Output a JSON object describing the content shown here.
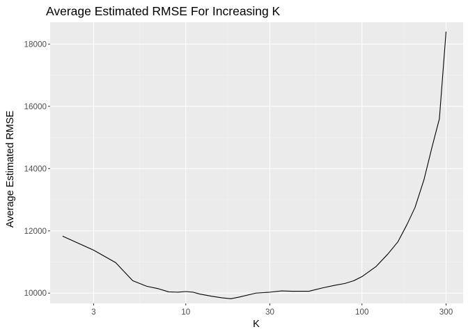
{
  "chart_data": {
    "type": "line",
    "title": "Average Estimated RMSE For Increasing K",
    "xlabel": "K",
    "ylabel": "Average Estimated RMSE",
    "x_scale": "log10",
    "xlim": [
      1.7,
      375
    ],
    "ylim": [
      9670,
      18700
    ],
    "x_ticks": [
      3,
      10,
      30,
      100,
      300
    ],
    "x_tick_labels": [
      "3",
      "10",
      "30",
      "100",
      "300"
    ],
    "y_ticks": [
      10000,
      12000,
      14000,
      16000,
      18000
    ],
    "y_tick_labels": [
      "10000",
      "12000",
      "14000",
      "16000",
      "18000"
    ],
    "grid": true,
    "legend": "none",
    "colors": {
      "panel_background": "#EBEBEB",
      "grid_major": "#FFFFFF",
      "grid_minor": "#F5F5F5",
      "line": "#000000",
      "tick_mark": "#333333"
    },
    "series": [
      {
        "x": [
          2,
          3,
          4,
          5,
          6,
          7,
          8,
          9,
          10,
          11,
          12,
          14,
          16,
          18,
          20,
          25,
          30,
          35,
          40,
          50,
          60,
          70,
          80,
          90,
          100,
          120,
          140,
          160,
          180,
          200,
          225,
          250,
          275,
          300
        ],
        "y": [
          11830,
          11380,
          10980,
          10400,
          10220,
          10140,
          10040,
          10030,
          10050,
          10030,
          9970,
          9900,
          9850,
          9820,
          9870,
          10000,
          10030,
          10070,
          10060,
          10060,
          10170,
          10250,
          10310,
          10400,
          10530,
          10850,
          11250,
          11650,
          12200,
          12750,
          13650,
          14700,
          15600,
          18400
        ]
      }
    ]
  }
}
